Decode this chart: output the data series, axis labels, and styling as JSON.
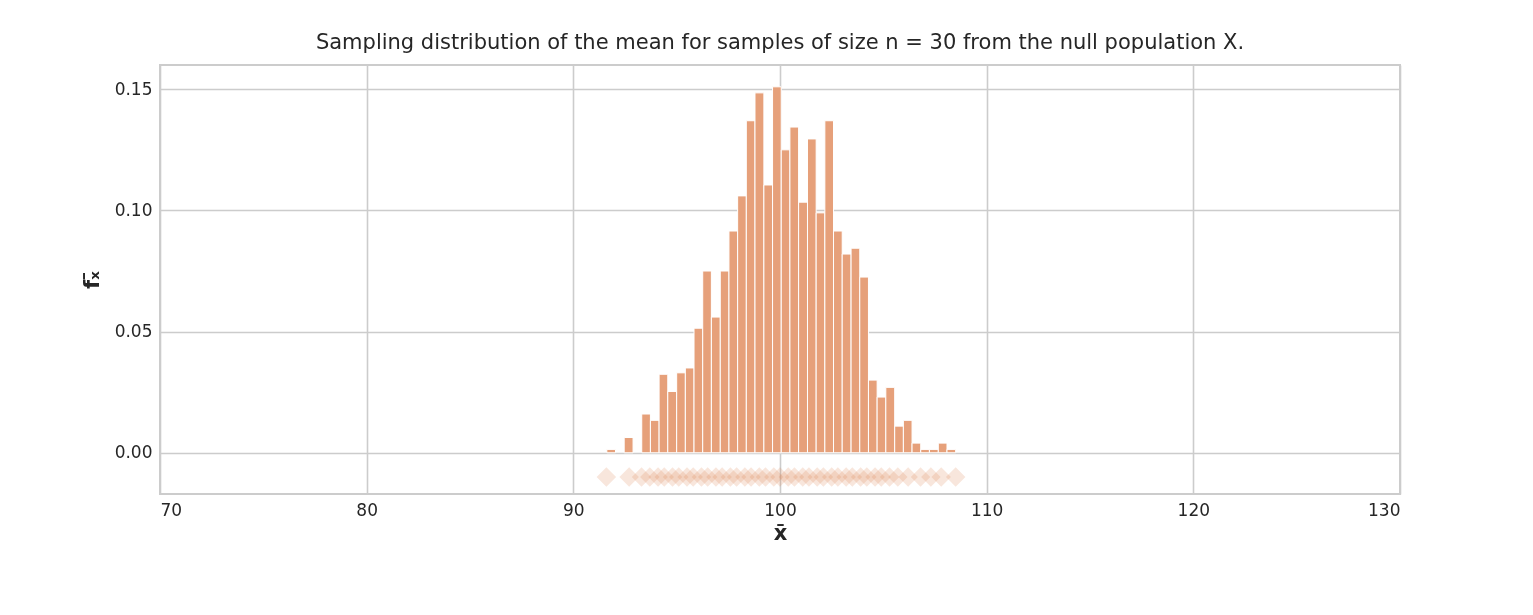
{
  "chart_data": {
    "type": "histogram",
    "title": "Sampling distribution of the mean for samples of size n = 30 from the null population X.",
    "xlabel": "x̄",
    "ylabel": "fₓ̄",
    "bins": [
      91.62,
      92.04,
      92.46,
      92.89,
      93.31,
      93.73,
      94.15,
      94.57,
      95.0,
      95.42,
      95.84,
      96.26,
      96.68,
      97.11,
      97.53,
      97.95,
      98.37,
      98.79,
      99.22,
      99.64,
      100.06,
      100.48,
      100.9,
      101.33,
      101.75,
      102.17,
      102.59,
      103.01,
      103.44,
      103.86,
      104.28,
      104.7,
      105.12,
      105.55,
      105.97,
      106.39,
      106.81,
      107.23,
      107.66,
      108.08,
      108.5
    ],
    "series": [
      {
        "type": "histogram",
        "color": "#e6a07a",
        "values": [
          0.0014,
          0,
          0.0063,
          0,
          0.016,
          0.0134,
          0.0324,
          0.0253,
          0.033,
          0.035,
          0.0514,
          0.075,
          0.056,
          0.075,
          0.0915,
          0.106,
          0.137,
          0.1485,
          0.1105,
          0.151,
          0.125,
          0.1344,
          0.1034,
          0.1295,
          0.099,
          0.137,
          0.0915,
          0.082,
          0.0844,
          0.0725,
          0.03,
          0.023,
          0.027,
          0.011,
          0.0134,
          0.004,
          0.0014,
          0.0014,
          0.004,
          0.0014
        ]
      },
      {
        "type": "scatter",
        "color": "#dd8452",
        "marker": "diamond",
        "x": [
          91.6,
          92.7,
          93.3,
          93.7,
          94.1,
          94.4,
          94.8,
          95.1,
          95.5,
          95.8,
          96.2,
          96.5,
          96.9,
          97.2,
          97.6,
          97.9,
          98.3,
          98.6,
          99.0,
          99.3,
          99.7,
          100.0,
          100.4,
          100.7,
          101.1,
          101.4,
          101.8,
          102.1,
          102.5,
          102.8,
          103.2,
          103.5,
          103.9,
          104.2,
          104.6,
          104.9,
          105.3,
          105.7,
          106.2,
          106.8,
          107.3,
          107.8,
          108.5
        ],
        "values": [
          -0.01,
          -0.01,
          -0.01,
          -0.01,
          -0.01,
          -0.01,
          -0.01,
          -0.01,
          -0.01,
          -0.01,
          -0.01,
          -0.01,
          -0.01,
          -0.01,
          -0.01,
          -0.01,
          -0.01,
          -0.01,
          -0.01,
          -0.01,
          -0.01,
          -0.01,
          -0.01,
          -0.01,
          -0.01,
          -0.01,
          -0.01,
          -0.01,
          -0.01,
          -0.01,
          -0.01,
          -0.01,
          -0.01,
          -0.01,
          -0.01,
          -0.01,
          -0.01,
          -0.01,
          -0.01,
          -0.01,
          -0.01,
          -0.01,
          -0.01
        ]
      }
    ],
    "xlim": [
      70,
      130
    ],
    "xticks": [
      70,
      80,
      90,
      100,
      110,
      120,
      130
    ],
    "ylim": [
      -0.017,
      0.16
    ],
    "yticks": [
      {
        "value": 0,
        "label": "0.00"
      },
      {
        "value": 0.05,
        "label": "0.05"
      },
      {
        "value": 0.1,
        "label": "0.10"
      },
      {
        "value": 0.15,
        "label": "0.15"
      }
    ],
    "grid": true
  }
}
